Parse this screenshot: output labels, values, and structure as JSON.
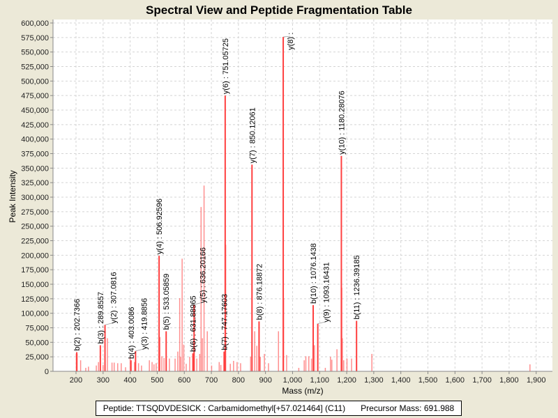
{
  "chart_data": {
    "type": "bar",
    "title": "Spectral View and Peptide Fragmentation Table",
    "xlabel": "Mass (m/z)",
    "ylabel": "Peak Intensity",
    "xlim": [
      115,
      1960
    ],
    "ylim": [
      0,
      606000
    ],
    "xticks": [
      200,
      300,
      400,
      500,
      600,
      700,
      800,
      900,
      1000,
      1100,
      1200,
      1300,
      1400,
      1500,
      1600,
      1700,
      1800,
      1900
    ],
    "yticks": [
      0,
      25000,
      50000,
      75000,
      100000,
      125000,
      150000,
      175000,
      200000,
      225000,
      250000,
      275000,
      300000,
      325000,
      350000,
      375000,
      400000,
      425000,
      450000,
      475000,
      500000,
      525000,
      550000,
      575000,
      600000
    ],
    "grid": true,
    "colors": {
      "peak": "#ff6a6a",
      "annotated": "#ff4040"
    },
    "peaks": [
      [
        201,
        31000
      ],
      [
        204,
        30000
      ],
      [
        217,
        19000
      ],
      [
        236,
        6000
      ],
      [
        246,
        8000
      ],
      [
        275,
        10000
      ],
      [
        283,
        16000
      ],
      [
        300,
        11000
      ],
      [
        316,
        57000
      ],
      [
        333,
        15000
      ],
      [
        341,
        15000
      ],
      [
        354,
        14000
      ],
      [
        367,
        14000
      ],
      [
        383,
        7000
      ],
      [
        400,
        24000
      ],
      [
        416,
        16000
      ],
      [
        431,
        14000
      ],
      [
        442,
        10000
      ],
      [
        471,
        19000
      ],
      [
        481,
        16000
      ],
      [
        488,
        12000
      ],
      [
        496,
        14000
      ],
      [
        510,
        59000
      ],
      [
        517,
        26000
      ],
      [
        525,
        23000
      ],
      [
        545,
        22000
      ],
      [
        566,
        22000
      ],
      [
        576,
        34000
      ],
      [
        583,
        126000
      ],
      [
        586,
        25000
      ],
      [
        592,
        194000
      ],
      [
        598,
        46000
      ],
      [
        607,
        13000
      ],
      [
        620,
        25000
      ],
      [
        646,
        22000
      ],
      [
        657,
        30000
      ],
      [
        662,
        283000
      ],
      [
        667,
        57000
      ],
      [
        673,
        320000
      ],
      [
        685,
        69000
      ],
      [
        701,
        10000
      ],
      [
        729,
        16000
      ],
      [
        735,
        11000
      ],
      [
        753,
        218000
      ],
      [
        770,
        13000
      ],
      [
        782,
        18000
      ],
      [
        795,
        16000
      ],
      [
        808,
        14000
      ],
      [
        845,
        25000
      ],
      [
        860,
        69000
      ],
      [
        868,
        44000
      ],
      [
        881,
        25000
      ],
      [
        896,
        30000
      ],
      [
        911,
        14000
      ],
      [
        948,
        69000
      ],
      [
        967,
        126000
      ],
      [
        978,
        28000
      ],
      [
        1023,
        6000
      ],
      [
        1043,
        19000
      ],
      [
        1049,
        26000
      ],
      [
        1060,
        26000
      ],
      [
        1070,
        22000
      ],
      [
        1081,
        45000
      ],
      [
        1121,
        6000
      ],
      [
        1140,
        25000
      ],
      [
        1145,
        20000
      ],
      [
        1164,
        38000
      ],
      [
        1182,
        144000
      ],
      [
        1184,
        57000
      ],
      [
        1189,
        19000
      ],
      [
        1201,
        22000
      ],
      [
        1218,
        22000
      ],
      [
        1293,
        30000
      ],
      [
        1877,
        12000
      ]
    ],
    "annotations": [
      {
        "label": "b(2) : 202.7366",
        "mass": 202.74,
        "intensity": 33000
      },
      {
        "label": "b(3) : 289.8557",
        "mass": 289.86,
        "intensity": 45000
      },
      {
        "label": "y(2) : 307.0816",
        "mass": 307.08,
        "intensity": 80000
      },
      {
        "label": "b(4) : 403.0086",
        "mass": 403.0,
        "intensity": 19000
      },
      {
        "label": "y(3) : 419.8856",
        "mass": 419.9,
        "intensity": 35000
      },
      {
        "label": "y(4) : 506.92596",
        "mass": 506.93,
        "intensity": 199000
      },
      {
        "label": "b(5) : 533.05859",
        "mass": 533.06,
        "intensity": 69000
      },
      {
        "label": "b(6) : 631.88965",
        "mass": 631.89,
        "intensity": 31000
      },
      {
        "label": "y(5) : 636.20166",
        "mass": 636.2,
        "intensity": 115000
      },
      {
        "label": "b(7) : 747.17603",
        "mass": 747.18,
        "intensity": 34000
      },
      {
        "label": "y(6) : 751.05725",
        "mass": 751.06,
        "intensity": 475000
      },
      {
        "label": "y(7) : 850.12061",
        "mass": 850.12,
        "intensity": 356000
      },
      {
        "label": "b(8) : 876.18872",
        "mass": 876.19,
        "intensity": 86000
      },
      {
        "label": "y(8) :",
        "mass": 965.5,
        "intensity": 576000
      },
      {
        "label": "b(10) : 1076.1438",
        "mass": 1076.14,
        "intensity": 114000
      },
      {
        "label": "y(9) : 1093.16431",
        "mass": 1093.16,
        "intensity": 82000
      },
      {
        "label": "y(10) : 1180.28076",
        "mass": 1180.28,
        "intensity": 371000
      },
      {
        "label": "b(11) : 1236.39185",
        "mass": 1236.39,
        "intensity": 87000
      }
    ]
  },
  "legend": {
    "peptide": "Peptide: TTSQDVDESICK : Carbamidomethyl[+57.021464] (C11)",
    "precursor": "Precursor Mass: 691.988"
  }
}
